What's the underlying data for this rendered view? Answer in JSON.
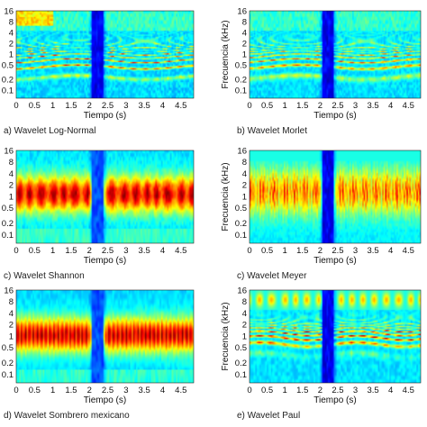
{
  "figure": {
    "colormap": [
      "#00007f",
      "#0000ff",
      "#007fff",
      "#00ffff",
      "#7fff7f",
      "#ffff00",
      "#ff7f00",
      "#ff0000",
      "#7f0000"
    ]
  },
  "chart_data": [
    {
      "type": "heatmap",
      "caption": "a) Wavelet Log-Normal",
      "xlabel": "Tiempo (s)",
      "ylabel": "",
      "x_ticks": [
        "0",
        "0.5",
        "1",
        "1.5",
        "2",
        "2.5",
        "3",
        "3.5",
        "4",
        "4.5"
      ],
      "y_ticks": [
        "16",
        "8",
        "4",
        "2",
        "1",
        "0.5",
        "0.2",
        "0.1"
      ],
      "xlim": [
        0,
        4.85
      ],
      "ylim_khz": [
        0.06,
        16
      ],
      "y_scale": "log",
      "style": "harmonic",
      "gap_time_s": [
        2.05,
        2.4
      ]
    },
    {
      "type": "heatmap",
      "caption": "b) Wavelet Morlet",
      "xlabel": "Tiempo (s)",
      "ylabel": "Frecuencia (kHz)",
      "x_ticks": [
        "0",
        "0.5",
        "1",
        "1.5",
        "2",
        "2.5",
        "3",
        "3.5",
        "4",
        "4.5"
      ],
      "y_ticks": [
        "16",
        "8",
        "4",
        "2",
        "1",
        "0.5",
        "0.2",
        "0.1"
      ],
      "xlim": [
        0,
        4.85
      ],
      "ylim_khz": [
        0.06,
        16
      ],
      "y_scale": "log",
      "style": "harmonic-soft",
      "gap_time_s": [
        2.05,
        2.4
      ]
    },
    {
      "type": "heatmap",
      "caption": "c) Wavelet Shannon",
      "xlabel": "Tiempo (s)",
      "ylabel": "",
      "x_ticks": [
        "0",
        "0.5",
        "1",
        "1.5",
        "2",
        "2.5",
        "3",
        "3.5",
        "4",
        "4.5"
      ],
      "y_ticks": [
        "16",
        "8",
        "4",
        "2",
        "1",
        "0.5",
        "0.2",
        "0.1"
      ],
      "xlim": [
        0,
        4.85
      ],
      "ylim_khz": [
        0.06,
        16
      ],
      "y_scale": "log",
      "style": "broadband",
      "gap_time_s": [
        2.05,
        2.4
      ]
    },
    {
      "type": "heatmap",
      "caption": "c) Wavelet Meyer",
      "xlabel": "Tiempo (s)",
      "ylabel": "Frecuencia (kHz)",
      "x_ticks": [
        "0",
        "0.5",
        "1",
        "1.5",
        "2",
        "2.5",
        "3",
        "3.5",
        "4",
        "4.5"
      ],
      "y_ticks": [
        "16",
        "8",
        "4",
        "2",
        "1",
        "0.5",
        "0.2",
        "0.1"
      ],
      "xlim": [
        0,
        4.85
      ],
      "ylim_khz": [
        0.06,
        16
      ],
      "y_scale": "log",
      "style": "striated",
      "gap_time_s": [
        2.05,
        2.4
      ]
    },
    {
      "type": "heatmap",
      "caption": "d) Wavelet Sombrero mexicano",
      "xlabel": "Tiempo (s)",
      "ylabel": "",
      "x_ticks": [
        "0",
        "0.5",
        "1",
        "1.5",
        "2",
        "2.5",
        "3",
        "3.5",
        "4",
        "4.5"
      ],
      "y_ticks": [
        "16",
        "8",
        "4",
        "2",
        "1",
        "0.5",
        "0.2",
        "0.1"
      ],
      "xlim": [
        0,
        4.85
      ],
      "ylim_khz": [
        0.06,
        16
      ],
      "y_scale": "log",
      "style": "smooth",
      "gap_time_s": [
        2.05,
        2.4
      ]
    },
    {
      "type": "heatmap",
      "caption": "e) Wavelet Paul",
      "xlabel": "Tiempo (s)",
      "ylabel": "Frecuencia (kHz)",
      "x_ticks": [
        "0",
        "0.5",
        "1",
        "1.5",
        "2",
        "2.5",
        "3",
        "3.5",
        "4",
        "4.5"
      ],
      "y_ticks": [
        "16",
        "8",
        "4",
        "2",
        "1",
        "0.5",
        "0.2",
        "0.1"
      ],
      "xlim": [
        0,
        4.85
      ],
      "ylim_khz": [
        0.06,
        16
      ],
      "y_scale": "log",
      "style": "blobs",
      "gap_time_s": [
        2.05,
        2.4
      ]
    }
  ]
}
